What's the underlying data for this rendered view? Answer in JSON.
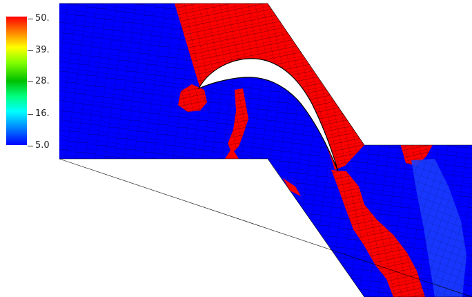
{
  "colorbar": {
    "labels": [
      "50.",
      "39.",
      "28.",
      "16.",
      "5.0"
    ],
    "colors": {
      "high": "#ff0000",
      "low": "#0000ff",
      "mid": "#00c000"
    }
  },
  "field": {
    "min": 5.0,
    "max": 50.0,
    "colormap": "rainbow",
    "regions": [
      "upstream-passage",
      "blade-suction-side-channel",
      "downstream-passage"
    ]
  },
  "colors": {
    "background": "#ffffff",
    "mesh_lines": "#000000",
    "blade": "#ffffff"
  }
}
